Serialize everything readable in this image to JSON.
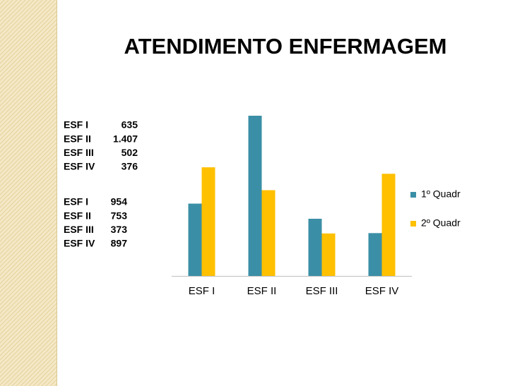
{
  "chart_data": {
    "type": "bar",
    "title": "ATENDIMENTO ENFERMAGEM",
    "categories": [
      "ESF I",
      "ESF II",
      "ESF III",
      "ESF IV"
    ],
    "series": [
      {
        "name": "1º Quadr",
        "color": "#3a8fa6",
        "values": [
          635,
          1407,
          502,
          376
        ],
        "value_labels": [
          "635",
          "1.407",
          "502",
          "376"
        ]
      },
      {
        "name": "2º Quadr",
        "color": "#ffc000",
        "values": [
          954,
          753,
          373,
          897
        ]
      }
    ]
  }
}
